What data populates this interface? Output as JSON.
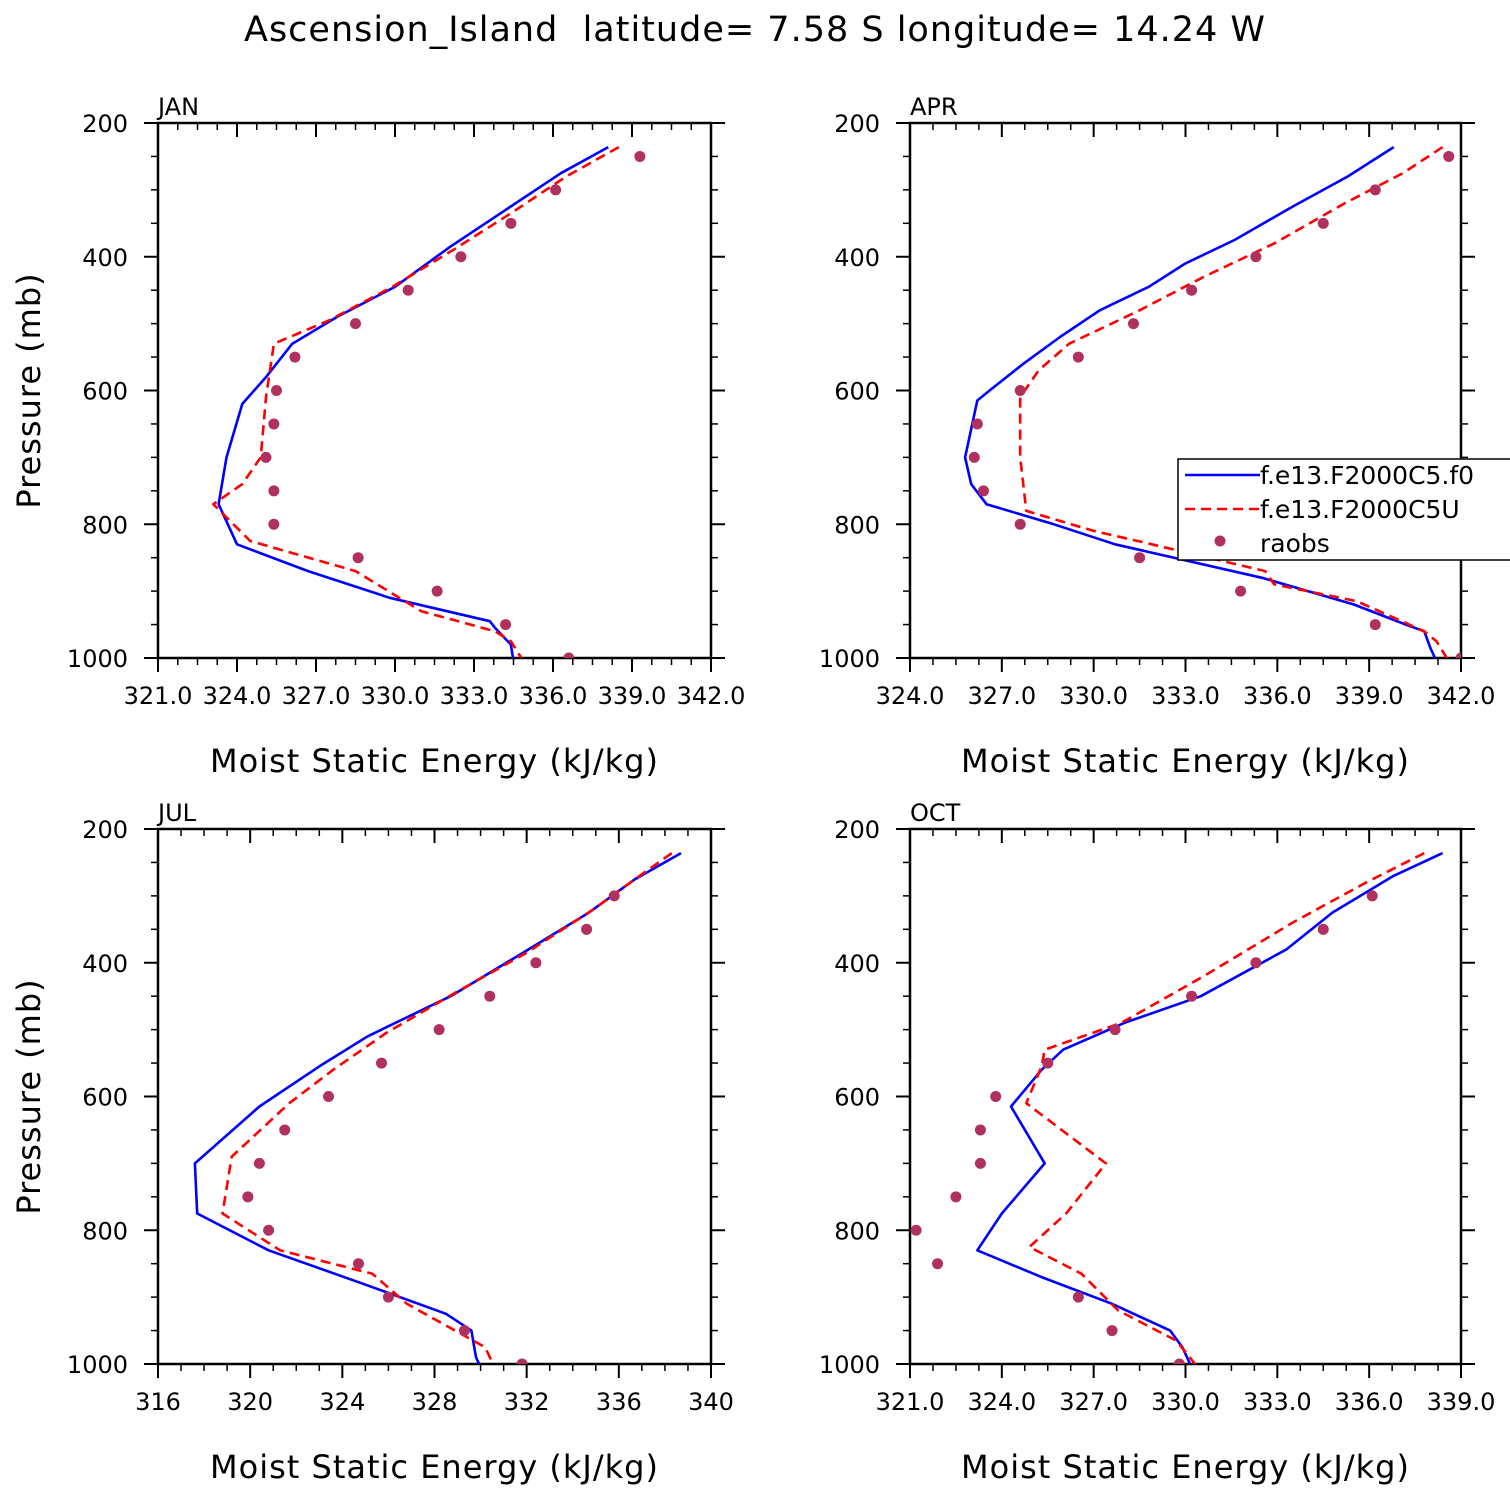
{
  "title": "Ascension_Island  latitude= 7.58 S longitude= 14.24 W",
  "colors": {
    "series1": "#0000ff",
    "series2": "#ff0000",
    "raobs": "#b03060"
  },
  "chart_data": [
    {
      "type": "line",
      "panel_label": "JAN",
      "xlabel": "Moist Static Energy (kJ/kg)",
      "ylabel": "Pressure (mb)",
      "xlim": [
        321.0,
        342.0
      ],
      "ylim": [
        1000,
        200
      ],
      "xticks": [
        321.0,
        324.0,
        327.0,
        330.0,
        333.0,
        336.0,
        339.0,
        342.0
      ],
      "xtick_labels": [
        "321.0",
        "324.0",
        "327.0",
        "330.0",
        "333.0",
        "336.0",
        "339.0",
        "342.0"
      ],
      "yticks": [
        200,
        400,
        600,
        800,
        1000
      ],
      "ytick_labels": [
        "200",
        "400",
        "600",
        "800",
        "1000"
      ],
      "series": [
        {
          "name": "f.e13.F2000C5.f0",
          "style": "solid",
          "color": "#0000ff",
          "x": [
            338.1,
            336.3,
            334.2,
            332.1,
            330.0,
            327.8,
            326.1,
            325.1,
            324.2,
            323.6,
            323.3,
            324.0,
            326.7,
            329.8,
            333.6,
            333.8,
            334.4,
            334.5
          ],
          "y": [
            236,
            275,
            330,
            385,
            445,
            490,
            530,
            580,
            620,
            700,
            770,
            830,
            870,
            910,
            945,
            955,
            980,
            1005
          ]
        },
        {
          "name": "f.e13.F2000C5U",
          "style": "dashed",
          "color": "#ff0000",
          "x": [
            338.5,
            336.5,
            334.4,
            332.2,
            329.9,
            327.5,
            325.4,
            325.1,
            324.9,
            324.2,
            323.1,
            324.5,
            328.5,
            331.0,
            333.8,
            334.4,
            334.8
          ],
          "y": [
            236,
            280,
            335,
            390,
            445,
            495,
            530,
            610,
            700,
            740,
            770,
            825,
            870,
            930,
            960,
            975,
            1000
          ]
        }
      ],
      "points": {
        "name": "raobs",
        "color": "#b03060",
        "x": [
          339.3,
          336.1,
          334.4,
          332.5,
          330.5,
          328.5,
          326.2,
          325.5,
          325.4,
          325.1,
          325.4,
          325.4,
          328.6,
          331.6,
          334.2,
          336.6
        ],
        "y": [
          250,
          300,
          350,
          400,
          450,
          500,
          550,
          600,
          650,
          700,
          750,
          800,
          850,
          900,
          950,
          1000
        ]
      }
    },
    {
      "type": "line",
      "panel_label": "APR",
      "xlabel": "Moist Static Energy (kJ/kg)",
      "ylabel": "",
      "xlim": [
        324.0,
        342.0
      ],
      "ylim": [
        1000,
        200
      ],
      "xticks": [
        324.0,
        327.0,
        330.0,
        333.0,
        336.0,
        339.0,
        342.0
      ],
      "xtick_labels": [
        "324.0",
        "327.0",
        "330.0",
        "333.0",
        "336.0",
        "339.0",
        "342.0"
      ],
      "yticks": [
        200,
        400,
        600,
        800,
        1000
      ],
      "ytick_labels": [
        "200",
        "400",
        "600",
        "800",
        "1000"
      ],
      "series": [
        {
          "name": "f.e13.F2000C5.f0",
          "style": "solid",
          "color": "#0000ff",
          "x": [
            339.8,
            338.3,
            336.5,
            334.6,
            333.0,
            331.8,
            330.2,
            328.9,
            327.7,
            326.6,
            326.2,
            325.8,
            326.0,
            326.5,
            328.7,
            330.7,
            335.5,
            338.5,
            340.2,
            340.8,
            341.0,
            341.2
          ],
          "y": [
            236,
            280,
            325,
            375,
            410,
            445,
            480,
            520,
            560,
            600,
            615,
            700,
            740,
            770,
            800,
            830,
            880,
            920,
            950,
            960,
            985,
            1005
          ]
        },
        {
          "name": "f.e13.F2000C5U",
          "style": "dashed",
          "color": "#ff0000",
          "x": [
            341.4,
            340.1,
            338.2,
            335.9,
            333.6,
            331.5,
            329.2,
            328.2,
            327.6,
            327.6,
            327.8,
            330.0,
            331.9,
            335.6,
            335.9,
            338.6,
            340.8,
            341.2,
            341.6
          ],
          "y": [
            236,
            275,
            320,
            380,
            430,
            480,
            530,
            570,
            610,
            700,
            780,
            810,
            830,
            870,
            890,
            915,
            960,
            975,
            1005
          ]
        }
      ],
      "points": {
        "name": "raobs",
        "color": "#b03060",
        "x": [
          341.6,
          339.2,
          337.5,
          335.3,
          333.2,
          331.3,
          329.5,
          327.6,
          326.2,
          326.1,
          326.4,
          327.6,
          331.5,
          334.8,
          339.2,
          342.0
        ],
        "y": [
          250,
          300,
          350,
          400,
          450,
          500,
          550,
          600,
          650,
          700,
          750,
          800,
          850,
          900,
          950,
          1000
        ]
      }
    },
    {
      "type": "line",
      "panel_label": "JUL",
      "xlabel": "Moist Static Energy (kJ/kg)",
      "ylabel": "Pressure (mb)",
      "xlim": [
        316,
        340
      ],
      "ylim": [
        1000,
        200
      ],
      "xticks": [
        316,
        320,
        324,
        328,
        332,
        336,
        340
      ],
      "xtick_labels": [
        "316",
        "320",
        "324",
        "328",
        "332",
        "336",
        "340"
      ],
      "yticks": [
        200,
        400,
        600,
        800,
        1000
      ],
      "ytick_labels": [
        "200",
        "400",
        "600",
        "800",
        "1000"
      ],
      "series": [
        {
          "name": "f.e13.F2000C5.f0",
          "style": "solid",
          "color": "#0000ff",
          "x": [
            338.7,
            336.7,
            334.7,
            331.6,
            328.7,
            325.1,
            323.0,
            320.4,
            317.6,
            317.7,
            320.8,
            324.9,
            328.5,
            329.6,
            329.8,
            330.0
          ],
          "y": [
            236,
            275,
            325,
            390,
            450,
            510,
            555,
            615,
            700,
            775,
            830,
            880,
            925,
            950,
            990,
            1005
          ]
        },
        {
          "name": "f.e13.F2000C5U",
          "style": "dashed",
          "color": "#ff0000",
          "x": [
            338.3,
            336.7,
            334.9,
            332.0,
            328.9,
            325.9,
            323.6,
            321.7,
            319.2,
            318.8,
            321.3,
            325.3,
            326.8,
            328.9,
            330.2,
            330.6
          ],
          "y": [
            236,
            275,
            320,
            385,
            445,
            505,
            560,
            610,
            690,
            775,
            830,
            865,
            910,
            950,
            975,
            1005
          ]
        }
      ],
      "points": {
        "name": "raobs",
        "color": "#b03060",
        "x": [
          335.8,
          334.6,
          332.4,
          330.4,
          328.2,
          325.7,
          323.4,
          321.5,
          320.4,
          319.9,
          320.8,
          324.7,
          326.0,
          329.3,
          331.8
        ],
        "y": [
          300,
          350,
          400,
          450,
          500,
          550,
          600,
          650,
          700,
          750,
          800,
          850,
          900,
          950,
          1000
        ]
      }
    },
    {
      "type": "line",
      "panel_label": "OCT",
      "xlabel": "Moist Static Energy (kJ/kg)",
      "ylabel": "",
      "xlim": [
        321.0,
        339.0
      ],
      "ylim": [
        1000,
        200
      ],
      "xticks": [
        321.0,
        324.0,
        327.0,
        330.0,
        333.0,
        336.0,
        339.0
      ],
      "xtick_labels": [
        "321.0",
        "324.0",
        "327.0",
        "330.0",
        "333.0",
        "336.0",
        "339.0"
      ],
      "yticks": [
        200,
        400,
        600,
        800,
        1000
      ],
      "ytick_labels": [
        "200",
        "400",
        "600",
        "800",
        "1000"
      ],
      "series": [
        {
          "name": "f.e13.F2000C5.f0",
          "style": "solid",
          "color": "#0000ff",
          "x": [
            338.4,
            336.8,
            334.8,
            333.3,
            330.5,
            328.0,
            326.0,
            325.3,
            324.3,
            325.4,
            324.0,
            323.2,
            325.3,
            327.6,
            329.5,
            329.9,
            330.2
          ],
          "y": [
            236,
            270,
            325,
            380,
            450,
            490,
            530,
            560,
            615,
            700,
            775,
            830,
            870,
            910,
            950,
            975,
            1005
          ]
        },
        {
          "name": "f.e13.F2000C5U",
          "style": "dashed",
          "color": "#ff0000",
          "x": [
            337.8,
            335.9,
            333.5,
            330.6,
            327.9,
            325.4,
            325.3,
            324.8,
            327.4,
            326.1,
            324.9,
            326.6,
            327.8,
            329.7,
            330.4
          ],
          "y": [
            236,
            280,
            340,
            420,
            490,
            530,
            555,
            610,
            700,
            775,
            825,
            865,
            920,
            965,
            1005
          ]
        }
      ],
      "points": {
        "name": "raobs",
        "color": "#b03060",
        "x": [
          336.1,
          334.5,
          332.3,
          330.2,
          327.7,
          325.5,
          323.8,
          323.3,
          323.3,
          322.5,
          321.2,
          321.9,
          326.5,
          327.6,
          329.8
        ],
        "y": [
          300,
          350,
          400,
          450,
          500,
          550,
          600,
          650,
          700,
          750,
          800,
          850,
          900,
          950,
          1000
        ]
      }
    }
  ],
  "legend": [
    {
      "label": "f.e13.F2000C5.f0",
      "kind": "solid-line",
      "color": "#0000ff"
    },
    {
      "label": "f.e13.F2000C5U",
      "kind": "dashed-line",
      "color": "#ff0000"
    },
    {
      "label": "raobs",
      "kind": "marker",
      "color": "#b03060"
    }
  ]
}
